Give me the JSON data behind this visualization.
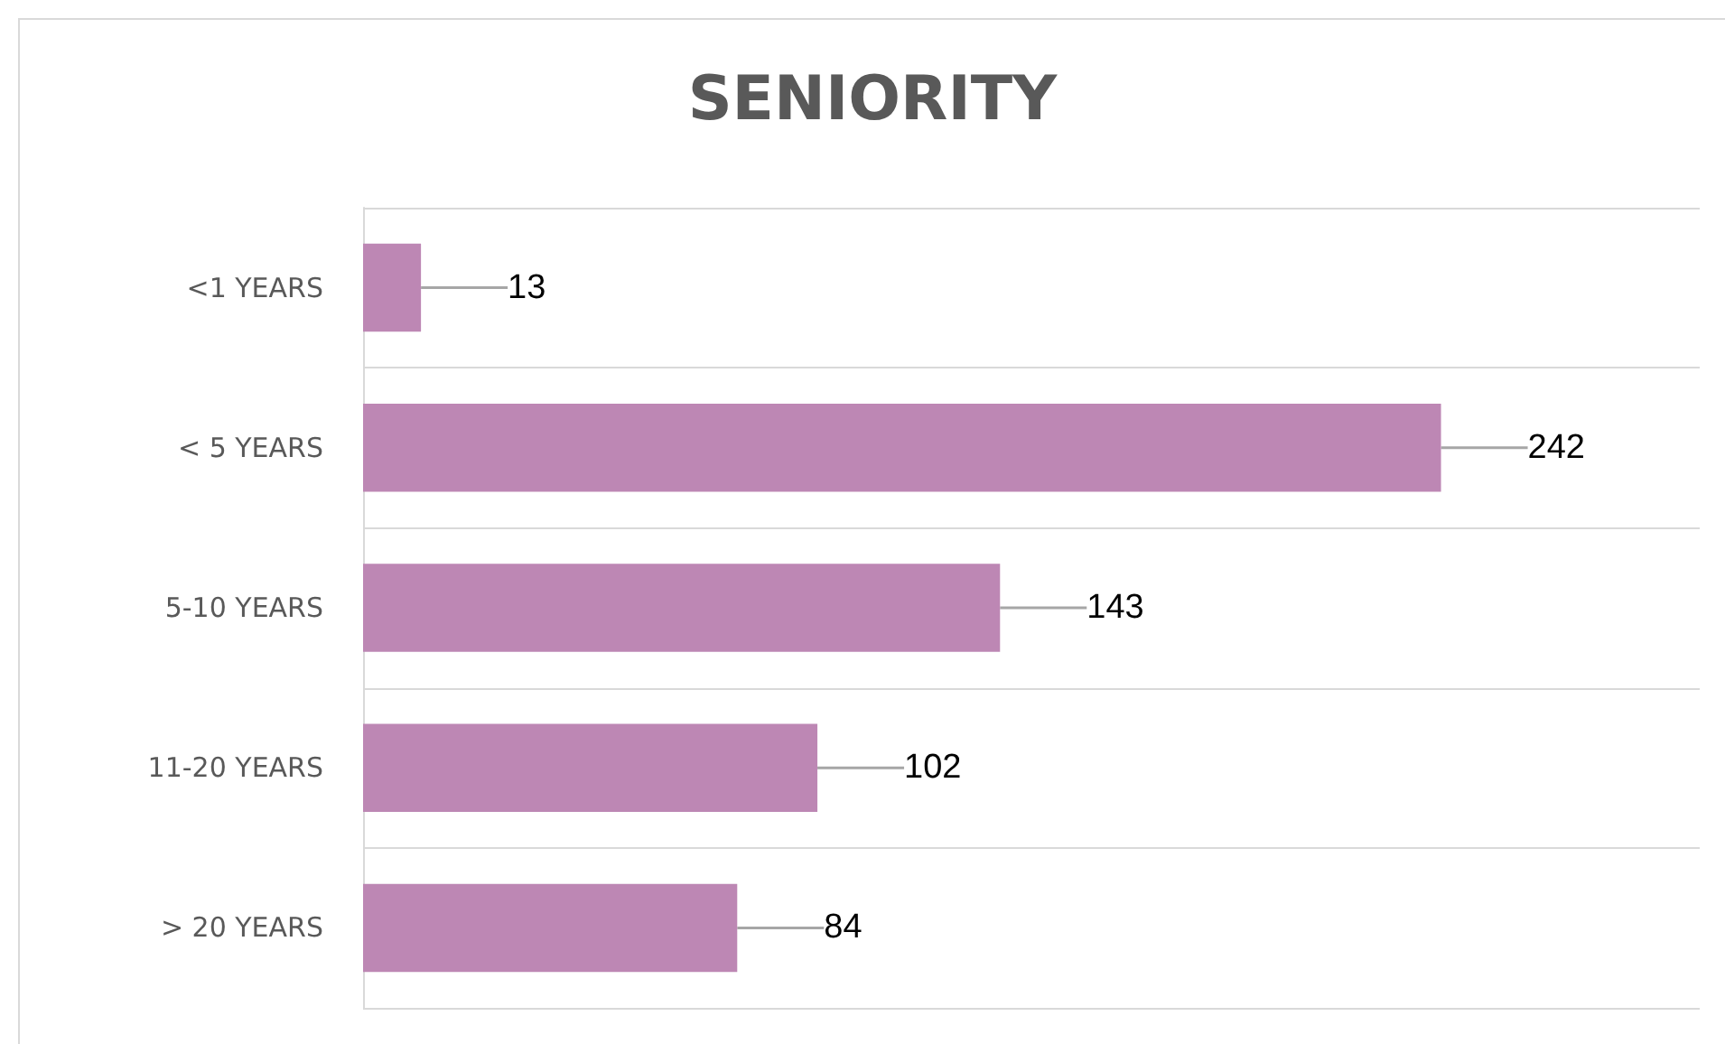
{
  "chart_data": {
    "type": "bar",
    "orientation": "horizontal",
    "title": "SENIORITY",
    "categories": [
      "<1 YEARS",
      "< 5 YEARS",
      "5-10 YEARS",
      "11-20 YEARS",
      "> 20 YEARS"
    ],
    "values": [
      13,
      242,
      143,
      102,
      84
    ],
    "color": "#bd87b4",
    "data_labels": true,
    "grid": "y"
  }
}
